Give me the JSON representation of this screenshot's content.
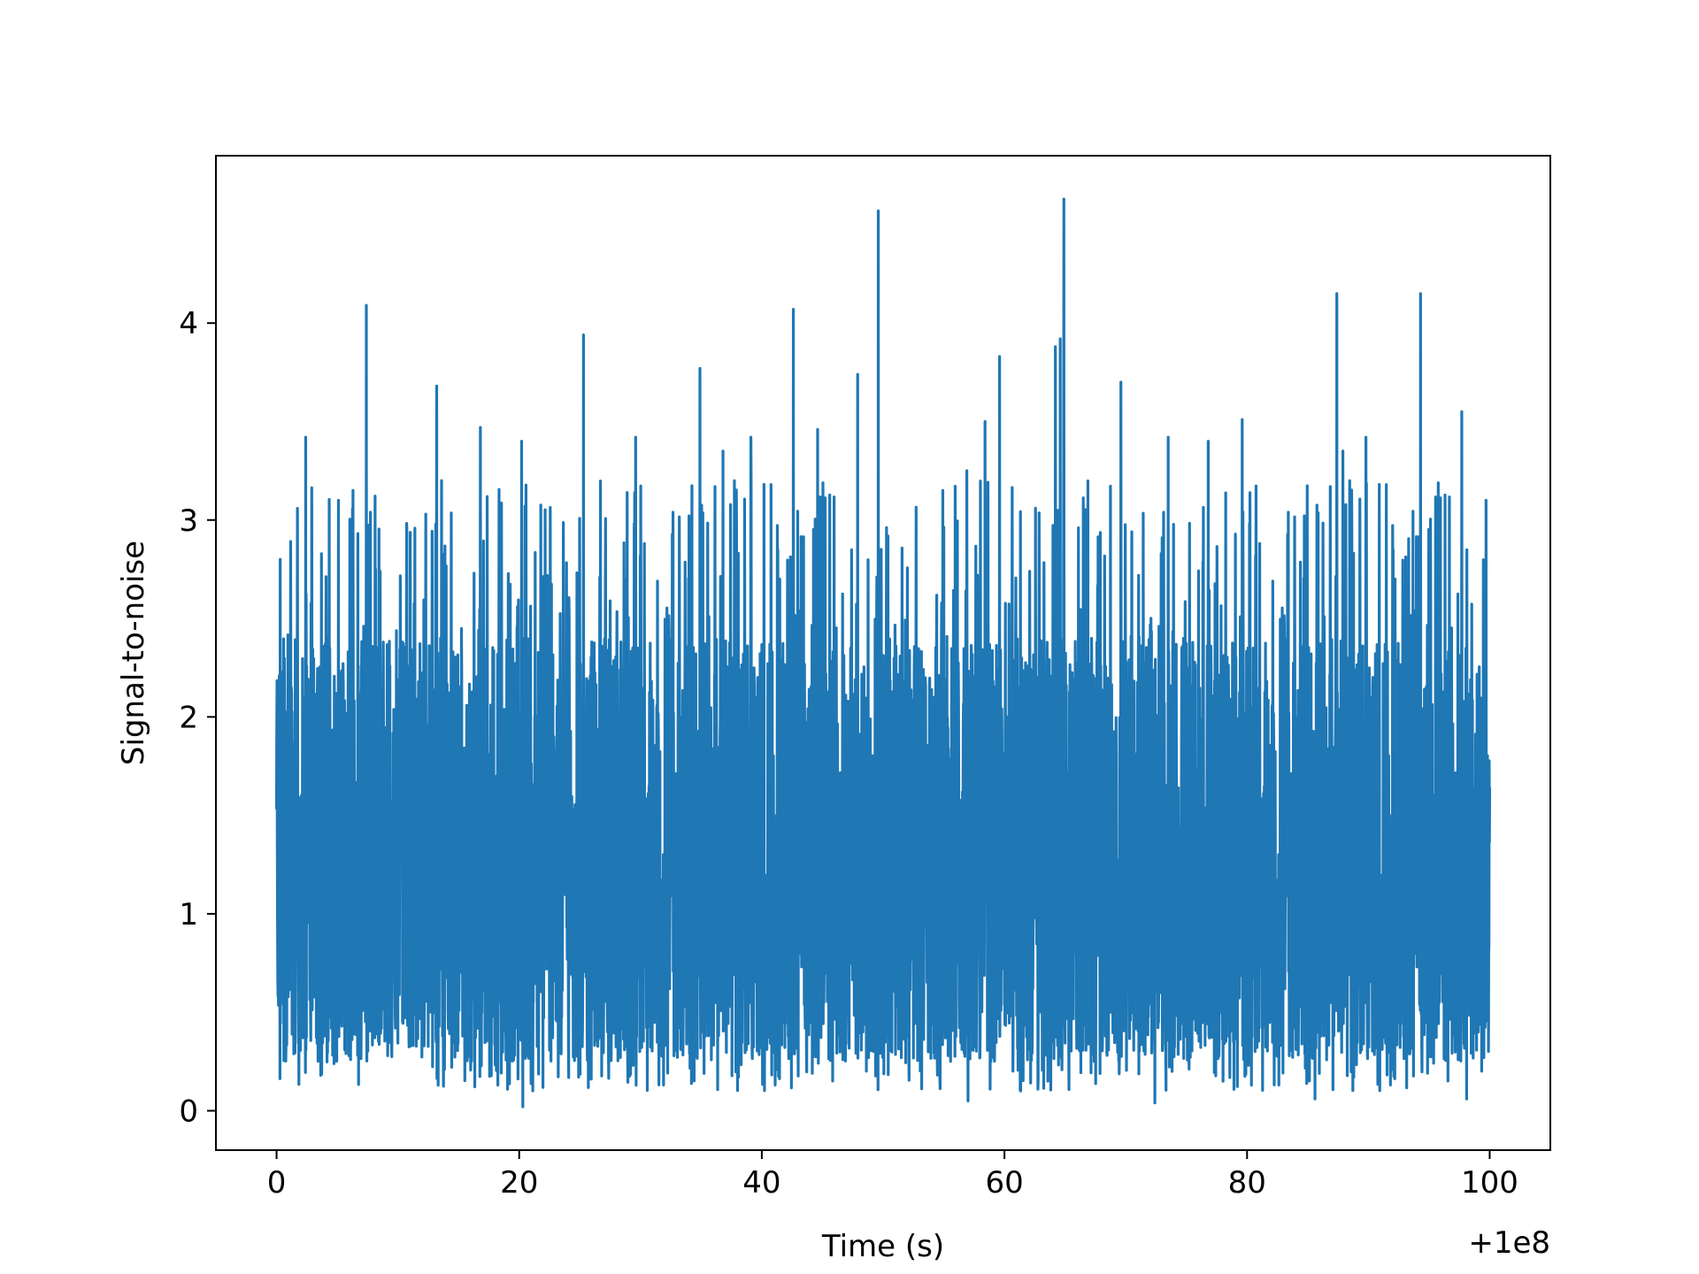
{
  "chart_data": {
    "type": "line",
    "title": "",
    "xlabel": "Time (s)",
    "ylabel": "Signal-to-noise",
    "x_offset_label": "+1e8",
    "x_offset": 100000000,
    "xlim": [
      -5,
      105
    ],
    "ylim": [
      -0.2,
      4.85
    ],
    "x_ticks": [
      0,
      20,
      40,
      60,
      80,
      100
    ],
    "x_tick_labels": [
      "0",
      "20",
      "40",
      "60",
      "80",
      "100"
    ],
    "y_ticks": [
      0,
      1,
      2,
      3,
      4
    ],
    "y_tick_labels": [
      "0",
      "1",
      "2",
      "3",
      "4"
    ],
    "grid": false,
    "legend": "none",
    "series_color": "#1f77b4",
    "series": [
      {
        "x_range": [
          0,
          100
        ],
        "baseline": 1.15,
        "typical_min": 0.25,
        "typical_max": 2.4,
        "peaks": [
          {
            "x": 0.3,
            "y": 2.8
          },
          {
            "x": 2.4,
            "y": 3.42
          },
          {
            "x": 5.1,
            "y": 3.1
          },
          {
            "x": 6.3,
            "y": 3.15
          },
          {
            "x": 7.4,
            "y": 4.09
          },
          {
            "x": 13.2,
            "y": 3.68
          },
          {
            "x": 13.6,
            "y": 3.2
          },
          {
            "x": 16.8,
            "y": 3.47
          },
          {
            "x": 20.2,
            "y": 3.4
          },
          {
            "x": 25.3,
            "y": 3.94
          },
          {
            "x": 29.6,
            "y": 3.42
          },
          {
            "x": 34.9,
            "y": 3.77
          },
          {
            "x": 36.8,
            "y": 3.35
          },
          {
            "x": 39.1,
            "y": 3.42
          },
          {
            "x": 42.6,
            "y": 4.07
          },
          {
            "x": 44.6,
            "y": 3.46
          },
          {
            "x": 47.9,
            "y": 3.74
          },
          {
            "x": 49.6,
            "y": 4.57
          },
          {
            "x": 56.9,
            "y": 3.25
          },
          {
            "x": 58.4,
            "y": 3.5
          },
          {
            "x": 59.6,
            "y": 3.83
          },
          {
            "x": 64.2,
            "y": 3.88
          },
          {
            "x": 64.6,
            "y": 3.92
          },
          {
            "x": 64.9,
            "y": 4.63
          },
          {
            "x": 69.6,
            "y": 3.7
          },
          {
            "x": 73.5,
            "y": 3.42
          },
          {
            "x": 76.8,
            "y": 3.4
          },
          {
            "x": 79.6,
            "y": 3.51
          },
          {
            "x": 87.4,
            "y": 4.15
          },
          {
            "x": 87.9,
            "y": 3.35
          },
          {
            "x": 89.8,
            "y": 3.42
          },
          {
            "x": 94.3,
            "y": 4.15
          },
          {
            "x": 97.7,
            "y": 3.55
          },
          {
            "x": 99.7,
            "y": 3.1
          }
        ],
        "dips": [
          {
            "x": 20.3,
            "y": 0.02
          },
          {
            "x": 57.0,
            "y": 0.05
          },
          {
            "x": 72.4,
            "y": 0.04
          },
          {
            "x": 85.6,
            "y": 0.06
          },
          {
            "x": 98.1,
            "y": 0.06
          }
        ]
      }
    ]
  }
}
